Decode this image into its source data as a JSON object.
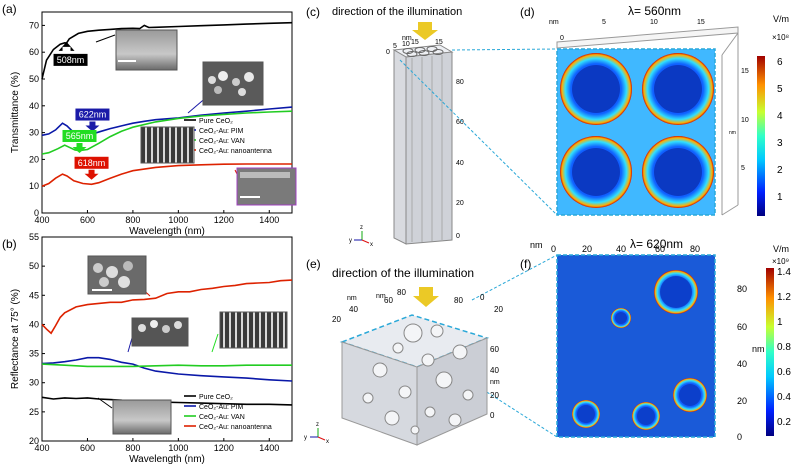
{
  "colors": {
    "pure": "#000000",
    "pim": "#0a18a8",
    "van": "#22cc22",
    "nano": "#dd2200",
    "annot_blue": "#1a1aa8",
    "annot_green": "#22dd22",
    "annot_red": "#dd1100",
    "frame_blue": "#2aa8d8"
  },
  "panel_labels": {
    "a": "(a)",
    "b": "(b)",
    "c": "(c)",
    "d": "(d)",
    "e": "(e)",
    "f": "(f)"
  },
  "chart_data": [
    {
      "id": "a",
      "type": "line",
      "xlabel": "Wavelength (nm)",
      "ylabel": "Transmittance (%)",
      "xlim": [
        400,
        1500
      ],
      "ylim": [
        0,
        75
      ],
      "xticks": [
        400,
        600,
        800,
        1000,
        1200,
        1400
      ],
      "yticks": [
        0,
        10,
        20,
        30,
        40,
        50,
        60,
        70
      ],
      "legend_position": "center-right",
      "series": [
        {
          "name": "Pure CeO₂",
          "color_key": "pure",
          "x": [
            400,
            420,
            450,
            480,
            500,
            508,
            520,
            560,
            600,
            650,
            700,
            750,
            800,
            830,
            850,
            870,
            900,
            1000,
            1100,
            1200,
            1300,
            1400,
            1500
          ],
          "y": [
            50,
            57,
            61,
            63,
            63.5,
            63.4,
            65,
            67,
            67.8,
            68.2,
            68.5,
            68.8,
            68.9,
            68.8,
            70,
            69.2,
            69.3,
            69.6,
            69.9,
            70.2,
            70.5,
            70.8,
            71
          ]
        },
        {
          "name": "CeO₂-Au: PIM",
          "color_key": "pim",
          "x": [
            400,
            430,
            460,
            490,
            510,
            540,
            580,
            622,
            660,
            700,
            750,
            800,
            850,
            900,
            1000,
            1100,
            1200,
            1300,
            1400,
            1500
          ],
          "y": [
            29,
            29.5,
            31,
            33.5,
            32.5,
            30,
            29.3,
            29.5,
            30.5,
            31.5,
            32.5,
            33.5,
            34.2,
            34.8,
            35.5,
            36.5,
            37.3,
            38,
            38.8,
            39.5
          ]
        },
        {
          "name": "CeO₂-Au: VAN",
          "color_key": "van",
          "x": [
            400,
            430,
            470,
            500,
            520,
            545,
            565,
            600,
            650,
            700,
            750,
            800,
            900,
            1000,
            1100,
            1200,
            1300,
            1400,
            1500
          ],
          "y": [
            22,
            22.5,
            24,
            25.3,
            24.5,
            23.5,
            23.3,
            23.7,
            26,
            28.5,
            30.5,
            32,
            34,
            35.3,
            36.2,
            36.8,
            37.3,
            37.7,
            38
          ]
        },
        {
          "name": "CeO₂-Au: nanoantenna",
          "color_key": "nano",
          "x": [
            400,
            430,
            460,
            490,
            510,
            540,
            580,
            618,
            650,
            700,
            750,
            800,
            900,
            1000,
            1100,
            1200,
            1300,
            1400,
            1500
          ],
          "y": [
            10,
            11,
            13,
            14.5,
            13.8,
            12,
            11,
            10.7,
            11.3,
            13,
            14.5,
            15.8,
            17,
            17.7,
            18,
            18.2,
            18.3,
            18.3,
            18.3
          ]
        }
      ],
      "annotations": [
        {
          "text": "508nm",
          "x": 508,
          "y": 59,
          "style": "black"
        },
        {
          "text": "622nm",
          "x": 622,
          "y": 34.5,
          "style": "blue"
        },
        {
          "text": "565nm",
          "x": 565,
          "y": 26.5,
          "style": "green"
        },
        {
          "text": "618nm",
          "x": 618,
          "y": 16.5,
          "style": "red"
        }
      ]
    },
    {
      "id": "b",
      "type": "line",
      "xlabel": "Wavelength (nm)",
      "ylabel": "Reflectance at 75° (%)",
      "xlim": [
        400,
        1500
      ],
      "ylim": [
        20,
        55
      ],
      "xticks": [
        400,
        600,
        800,
        1000,
        1200,
        1400
      ],
      "yticks": [
        20,
        25,
        30,
        35,
        40,
        45,
        50,
        55
      ],
      "legend_position": "bottom-right",
      "series": [
        {
          "name": "Pure CeO₂",
          "color_key": "pure",
          "x": [
            400,
            450,
            500,
            550,
            600,
            650,
            700,
            750,
            800,
            850,
            900,
            1000,
            1100,
            1200,
            1300,
            1400,
            1500
          ],
          "y": [
            27.5,
            27.2,
            27.4,
            27.3,
            27.4,
            27.2,
            27.1,
            27,
            26.7,
            26.2,
            26.7,
            26.6,
            26.5,
            26.4,
            26.3,
            26.3,
            26.2
          ]
        },
        {
          "name": "CeO₂-Au: PIM",
          "color_key": "pim",
          "x": [
            400,
            450,
            500,
            550,
            600,
            650,
            700,
            750,
            800,
            850,
            900,
            1000,
            1100,
            1200,
            1300,
            1400,
            1500
          ],
          "y": [
            33.3,
            33.4,
            33.6,
            33.9,
            34.3,
            34.3,
            34,
            33.5,
            33.2,
            32.5,
            32,
            31.5,
            31.2,
            31,
            30.8,
            30.5,
            30.3
          ]
        },
        {
          "name": "CeO₂-Au: VAN",
          "color_key": "van",
          "x": [
            400,
            500,
            600,
            700,
            800,
            900,
            1000,
            1100,
            1200,
            1300,
            1400,
            1500
          ],
          "y": [
            33.2,
            33,
            32.8,
            32.8,
            32.8,
            32.9,
            33,
            32.9,
            32.9,
            33,
            33,
            33
          ]
        },
        {
          "name": "CeO₂-Au: nanoantenna",
          "color_key": "nano",
          "x": [
            400,
            420,
            440,
            460,
            480,
            500,
            550,
            600,
            650,
            700,
            750,
            800,
            850,
            900,
            950,
            1000,
            1050,
            1100,
            1150,
            1200,
            1250,
            1300,
            1350,
            1400,
            1450,
            1500
          ],
          "y": [
            40,
            39.2,
            38.5,
            39.8,
            41.2,
            42,
            43,
            43.4,
            43.6,
            43.8,
            43.8,
            44.2,
            44.3,
            44.5,
            45.3,
            45.6,
            45.6,
            46,
            46.2,
            46.5,
            46.7,
            47,
            47.1,
            47.2,
            47.5,
            47.6
          ]
        }
      ]
    }
  ],
  "panel_c": {
    "title": "direction of the illumination",
    "top_axis_ticks": [
      "0",
      "5",
      "10",
      "15",
      "15"
    ],
    "top_axis_unit": "nm",
    "side_ticks": [
      "80",
      "60",
      "40",
      "20",
      "0"
    ],
    "triad": {
      "y": "y",
      "z": "z",
      "x": "x"
    }
  },
  "panel_d": {
    "title": "λ= 560nm",
    "top_ticks": [
      "5",
      "10",
      "15"
    ],
    "top_unit": "nm",
    "top_zero": "0",
    "right_ticks": [
      "15",
      "10",
      "5"
    ],
    "right_unit": "nm",
    "colorbar": {
      "unit": "V/m",
      "exponent": "×10⁸",
      "ticks": [
        "6",
        "5",
        "4",
        "3",
        "2",
        "1"
      ]
    }
  },
  "panel_e": {
    "title": "direction of the illumination",
    "left_unit": "nm",
    "left_ticks": [
      "40",
      "20"
    ],
    "mid_unit": "nm",
    "mid_ticks": [
      "60",
      "80"
    ],
    "right_ticks": [
      "80",
      "60",
      "40",
      "20",
      "0"
    ],
    "right_unit": "nm",
    "depth_ticks": [
      "0",
      "20"
    ],
    "triad": {
      "y": "y",
      "z": "z",
      "x": "x"
    }
  },
  "panel_f": {
    "title": "λ= 620nm",
    "top_unit": "nm",
    "top_ticks": [
      "0",
      "20",
      "40",
      "60",
      "80"
    ],
    "right_ticks": [
      "80",
      "60",
      "40",
      "20",
      "0"
    ],
    "right_unit": "nm",
    "colorbar": {
      "unit": "V/m",
      "exponent": "×10⁹",
      "ticks": [
        "1.4",
        "1.2",
        "1",
        "0.8",
        "0.6",
        "0.4",
        "0.2"
      ]
    }
  }
}
